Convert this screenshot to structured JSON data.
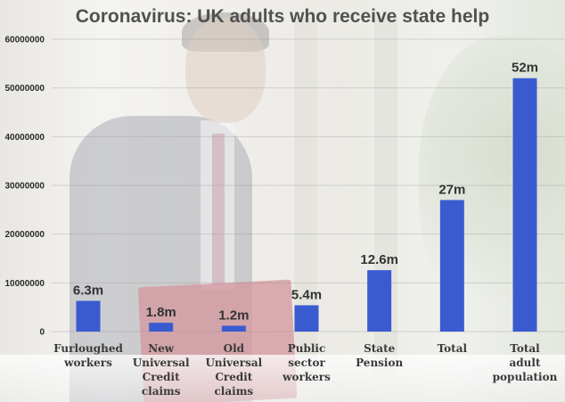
{
  "chart_data": {
    "type": "bar",
    "title": "Coronavirus: UK adults who receive state help",
    "xlabel": "",
    "ylabel": "",
    "categories": [
      "Furloughed workers",
      "New Universal Credit claims",
      "Old Universal Credit claims",
      "Public sector workers",
      "State Pension",
      "Total",
      "Total adult population"
    ],
    "values": [
      6300000,
      1800000,
      1200000,
      5400000,
      12600000,
      27000000,
      52000000
    ],
    "data_labels": [
      "6.3m",
      "1.8m",
      "1.2m",
      "5.4m",
      "12.6m",
      "27m",
      "52m"
    ],
    "ylim": [
      0,
      60000000
    ],
    "yticks": [
      0,
      10000000,
      20000000,
      30000000,
      40000000,
      50000000,
      60000000
    ],
    "ytick_labels": [
      "0",
      "10000000",
      "20000000",
      "30000000",
      "40000000",
      "50000000",
      "60000000"
    ],
    "bar_color": "#3a5bd0",
    "grid": true,
    "legend": "none"
  }
}
